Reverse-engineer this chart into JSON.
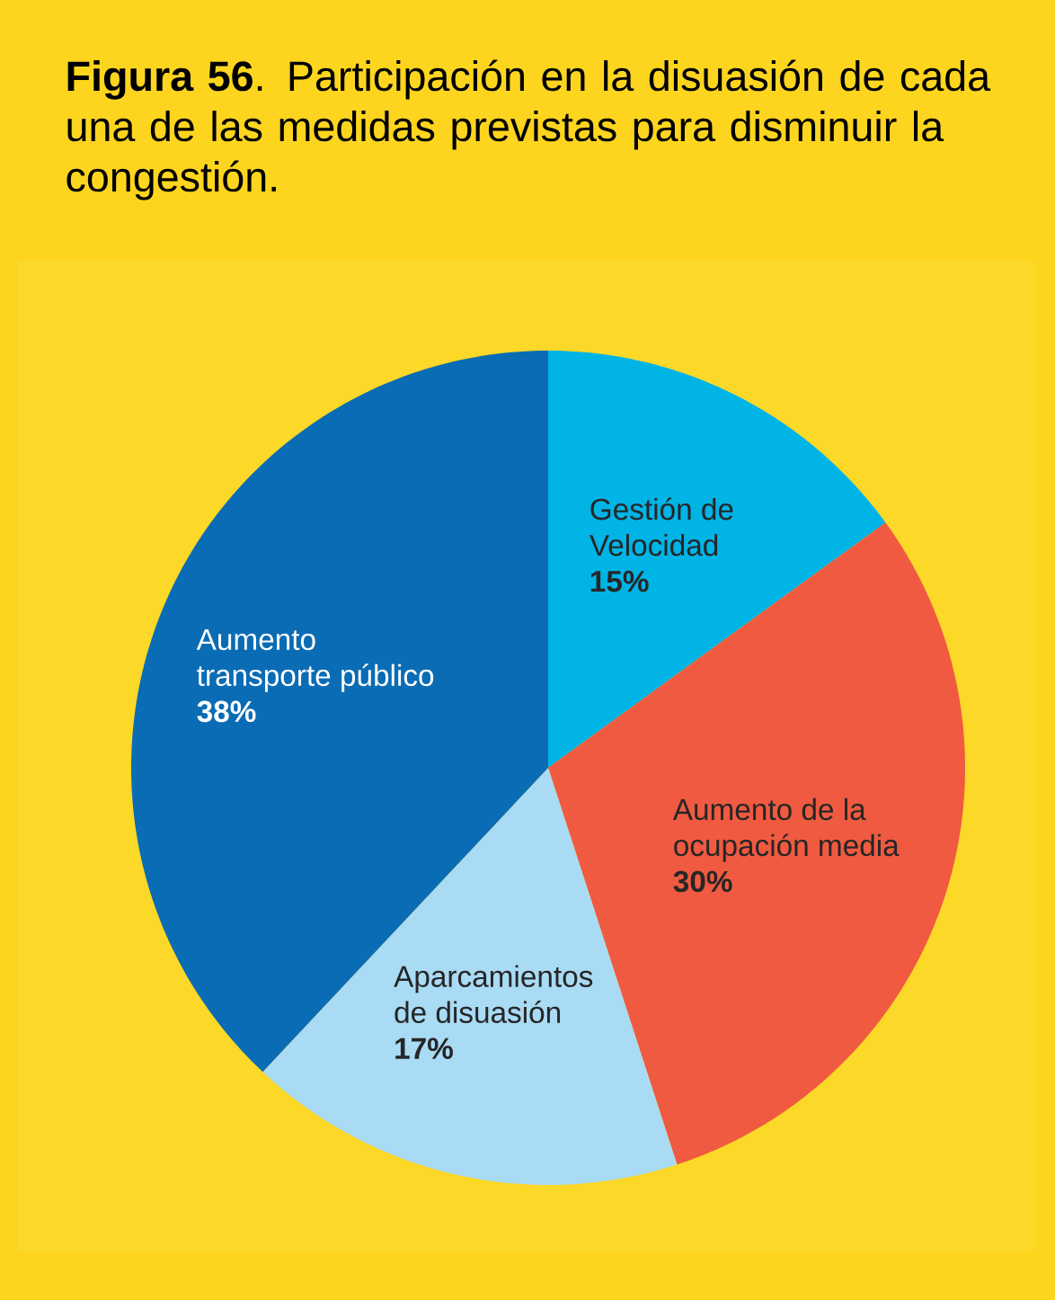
{
  "chart_data": {
    "type": "pie",
    "title": "**Figura 56**. Participación en la disuasión de cada una de las medidas previstas para disminuir la congestión.",
    "categories": [
      "Gestión de Velocidad",
      "Aumento de la ocupación media",
      "Aparcamientos de disuasión",
      "Aumento transporte público"
    ],
    "values": [
      15,
      30,
      17,
      38
    ],
    "value_labels": [
      "15%",
      "30%",
      "17%",
      "38%"
    ],
    "colors": [
      "#00b4e6",
      "#f05a40",
      "#a9dbf5",
      "#0a6cb4"
    ]
  }
}
